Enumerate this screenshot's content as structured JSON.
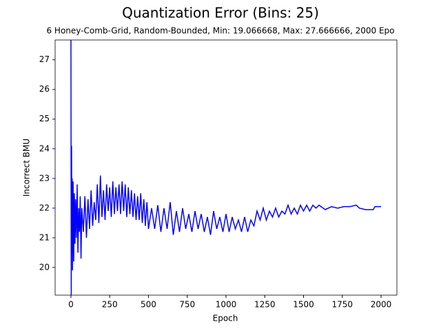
{
  "chart_data": {
    "type": "line",
    "title": "Quantization Error (Bins: 25)",
    "subtitle": "6 Honey-Comb-Grid, Random-Bounded, Min: 19.066668, Max: 27.666666, 2000 Epo",
    "x_label": "Epoch",
    "y_label": "Incorrect BMU",
    "x": [
      0,
      2,
      4,
      6,
      8,
      10,
      14,
      18,
      22,
      26,
      30,
      35,
      40,
      45,
      50,
      55,
      60,
      65,
      70,
      80,
      90,
      100,
      110,
      120,
      130,
      140,
      150,
      160,
      170,
      180,
      190,
      200,
      210,
      220,
      230,
      240,
      250,
      260,
      270,
      280,
      290,
      300,
      310,
      320,
      330,
      340,
      350,
      360,
      370,
      380,
      390,
      400,
      410,
      420,
      430,
      440,
      450,
      460,
      470,
      480,
      490,
      500,
      520,
      540,
      560,
      580,
      600,
      620,
      640,
      660,
      680,
      700,
      720,
      740,
      760,
      780,
      800,
      820,
      840,
      860,
      880,
      900,
      920,
      940,
      960,
      980,
      1000,
      1020,
      1040,
      1060,
      1080,
      1100,
      1120,
      1140,
      1160,
      1180,
      1200,
      1220,
      1240,
      1260,
      1280,
      1300,
      1320,
      1340,
      1360,
      1380,
      1400,
      1420,
      1440,
      1460,
      1480,
      1500,
      1520,
      1540,
      1560,
      1580,
      1600,
      1640,
      1680,
      1720,
      1760,
      1800,
      1840,
      1860,
      1900,
      1950,
      1960,
      2000
    ],
    "series": [
      {
        "name": "Incorrect BMU",
        "color": "#0000ff",
        "values": [
          27.67,
          19.07,
          24.1,
          20.5,
          23.0,
          19.9,
          22.9,
          20.2,
          22.5,
          20.8,
          22.3,
          21.0,
          22.8,
          20.5,
          22.0,
          21.2,
          22.4,
          20.3,
          22.0,
          21.2,
          22.4,
          21.0,
          22.3,
          21.3,
          22.6,
          21.4,
          22.2,
          21.6,
          22.8,
          21.5,
          23.1,
          21.7,
          22.6,
          21.6,
          22.8,
          21.9,
          22.7,
          21.7,
          22.9,
          21.8,
          22.7,
          21.9,
          22.8,
          21.8,
          22.9,
          21.9,
          22.8,
          21.7,
          22.7,
          21.8,
          22.6,
          21.7,
          22.5,
          21.6,
          22.4,
          21.6,
          22.5,
          21.5,
          22.3,
          21.4,
          22.2,
          21.3,
          22.0,
          21.3,
          22.1,
          21.2,
          22.0,
          21.3,
          22.2,
          21.1,
          21.9,
          21.2,
          22.0,
          21.3,
          21.8,
          21.2,
          21.9,
          21.3,
          21.8,
          21.2,
          21.7,
          21.1,
          21.9,
          21.3,
          21.7,
          21.2,
          21.8,
          21.2,
          21.7,
          21.3,
          21.6,
          21.2,
          21.7,
          21.2,
          21.6,
          21.4,
          21.9,
          21.6,
          22.0,
          21.6,
          21.9,
          21.7,
          22.0,
          21.7,
          21.9,
          21.8,
          22.1,
          21.8,
          22.0,
          21.8,
          22.1,
          21.9,
          22.1,
          21.9,
          22.1,
          22.0,
          22.1,
          21.95,
          22.05,
          22.0,
          22.05,
          22.05,
          22.1,
          22.0,
          21.95,
          21.95,
          22.05,
          22.05
        ]
      }
    ],
    "xlim": [
      -102,
      2102
    ],
    "ylim": [
      19.066668,
      27.666666
    ],
    "xticks": [
      0,
      250,
      500,
      750,
      1000,
      1250,
      1500,
      1750,
      2000
    ],
    "yticks": [
      20,
      21,
      22,
      23,
      24,
      25,
      26,
      27
    ],
    "y_color": "#0000ff"
  }
}
